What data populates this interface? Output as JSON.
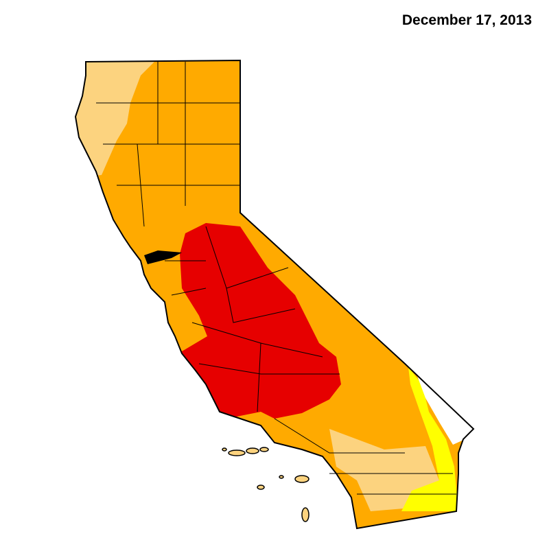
{
  "title": "December 17, 2013"
}
